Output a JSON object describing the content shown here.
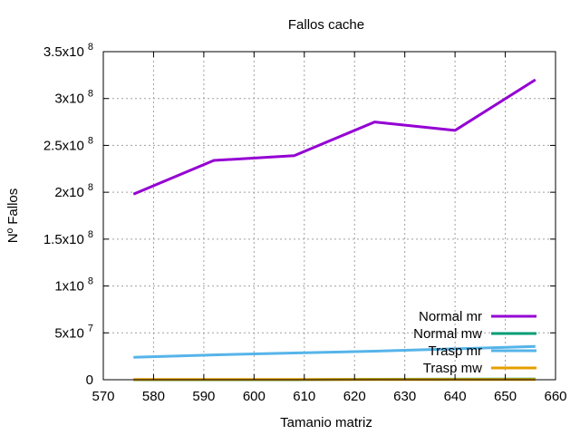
{
  "chart_data": {
    "type": "line",
    "title": "Fallos cache",
    "xlabel": "Tamanio matriz",
    "ylabel": "Nº Fallos",
    "xlim": [
      570,
      660
    ],
    "ylim": [
      0,
      350000000
    ],
    "grid": true,
    "legend_position": "bottom-right",
    "x_ticks": [
      {
        "value": 570,
        "label": "570"
      },
      {
        "value": 580,
        "label": "580"
      },
      {
        "value": 590,
        "label": "590"
      },
      {
        "value": 600,
        "label": "600"
      },
      {
        "value": 610,
        "label": "610"
      },
      {
        "value": 620,
        "label": "620"
      },
      {
        "value": 630,
        "label": "630"
      },
      {
        "value": 640,
        "label": "640"
      },
      {
        "value": 650,
        "label": "650"
      },
      {
        "value": 660,
        "label": "660"
      }
    ],
    "y_ticks": [
      {
        "value": 0,
        "mantissa": "0",
        "exp": ""
      },
      {
        "value": 50000000,
        "mantissa": "5x10",
        "exp": "7"
      },
      {
        "value": 100000000,
        "mantissa": "1x10",
        "exp": "8"
      },
      {
        "value": 150000000,
        "mantissa": "1.5x10",
        "exp": "8"
      },
      {
        "value": 200000000,
        "mantissa": "2x10",
        "exp": "8"
      },
      {
        "value": 250000000,
        "mantissa": "2.5x10",
        "exp": "8"
      },
      {
        "value": 300000000,
        "mantissa": "3x10",
        "exp": "8"
      },
      {
        "value": 350000000,
        "mantissa": "3.5x10",
        "exp": "8"
      }
    ],
    "series": [
      {
        "name": "Normal mr",
        "color": "#9400d3",
        "x": [
          576,
          592,
          608,
          624,
          640,
          656
        ],
        "y": [
          198000000,
          234000000,
          239000000,
          275000000,
          266000000,
          320000000
        ]
      },
      {
        "name": "Normal mw",
        "color": "#009e73",
        "x": [
          576,
          592,
          608,
          624,
          640,
          656
        ],
        "y": [
          0,
          0,
          0,
          500000,
          600000,
          800000
        ]
      },
      {
        "name": "Trasp mr",
        "color": "#56b4e9",
        "x": [
          576,
          592,
          608,
          624,
          640,
          656
        ],
        "y": [
          24000000,
          26500000,
          28500000,
          30500000,
          33000000,
          35500000
        ]
      },
      {
        "name": "Trasp mw",
        "color": "#e69f00",
        "x": [
          576,
          592,
          608,
          624,
          640,
          656
        ],
        "y": [
          300000,
          300000,
          300000,
          300000,
          300000,
          300000
        ]
      }
    ]
  }
}
